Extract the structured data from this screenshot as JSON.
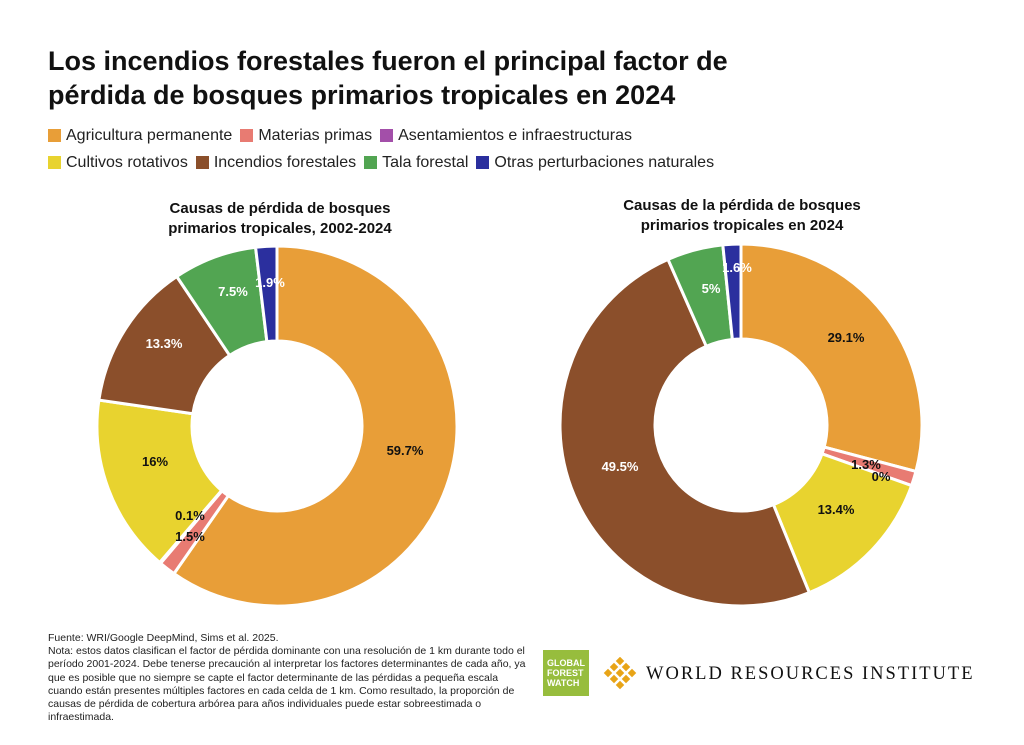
{
  "title": "Los incendios forestales fueron el principal factor de pérdida de bosques primarios tropicales en 2024",
  "legend": {
    "rows": [
      [
        {
          "label": "Agricultura permanente",
          "color": "#e89e38"
        },
        {
          "label": "Materias primas",
          "color": "#e87b72"
        },
        {
          "label": "Asentamientos e infraestructuras",
          "color": "#a34fa9"
        }
      ],
      [
        {
          "label": "Cultivos rotativos",
          "color": "#e8d32f"
        },
        {
          "label": "Incendios forestales",
          "color": "#8b4f2b"
        },
        {
          "label": "Tala forestal",
          "color": "#52a552"
        },
        {
          "label": "Otras perturbaciones naturales",
          "color": "#2b2f9e"
        }
      ]
    ]
  },
  "chart_data": [
    {
      "type": "pie",
      "title": "Causas de pérdida de bosques primarios tropicales, 2002-2024",
      "title_lines": [
        "Causas de pérdida de bosques",
        "primarios tropicales, 2002-2024"
      ],
      "donut": true,
      "slices": [
        {
          "name": "Agricultura permanente",
          "value": 59.7,
          "label": "59.7%",
          "color": "#e89e38"
        },
        {
          "name": "Materias primas",
          "value": 1.5,
          "label": "1.5%",
          "color": "#e87b72"
        },
        {
          "name": "Asentamientos e infraestructuras",
          "value": 0.1,
          "label": "0.1%",
          "color": "#a34fa9"
        },
        {
          "name": "Cultivos rotativos",
          "value": 16.0,
          "label": "16%",
          "color": "#e8d32f"
        },
        {
          "name": "Incendios forestales",
          "value": 13.3,
          "label": "13.3%",
          "color": "#8b4f2b"
        },
        {
          "name": "Tala forestal",
          "value": 7.5,
          "label": "7.5%",
          "color": "#52a552"
        },
        {
          "name": "Otras perturbaciones naturales",
          "value": 1.9,
          "label": "1.9%",
          "color": "#2b2f9e"
        }
      ]
    },
    {
      "type": "pie",
      "title": "Causas de la pérdida de bosques primarios tropicales en 2024",
      "title_lines": [
        "Causas de la pérdida de bosques",
        "primarios tropicales en 2024"
      ],
      "donut": true,
      "slices": [
        {
          "name": "Agricultura permanente",
          "value": 29.1,
          "label": "29.1%",
          "color": "#e89e38"
        },
        {
          "name": "Materias primas",
          "value": 1.3,
          "label": "1.3%",
          "color": "#e87b72"
        },
        {
          "name": "Asentamientos e infraestructuras",
          "value": 0.0,
          "label": "0%",
          "color": "#a34fa9"
        },
        {
          "name": "Cultivos rotativos",
          "value": 13.4,
          "label": "13.4%",
          "color": "#e8d32f"
        },
        {
          "name": "Incendios forestales",
          "value": 49.5,
          "label": "49.5%",
          "color": "#8b4f2b"
        },
        {
          "name": "Tala forestal",
          "value": 5.0,
          "label": "5%",
          "color": "#52a552"
        },
        {
          "name": "Otras perturbaciones naturales",
          "value": 1.6,
          "label": "1.6%",
          "color": "#2b2f9e"
        }
      ]
    }
  ],
  "footer": {
    "source": "Fuente: WRI/Google DeepMind, Sims et al. 2025.",
    "note": "Nota: estos datos clasifican el factor de pérdida dominante con una resolución de 1 km durante todo el período 2001-2024. Debe tenerse precaución al interpretar los factores determinantes de cada año, ya que es posible que no siempre se capte el factor determinante de las pérdidas a pequeña escala cuando están presentes múltiples factores en cada celda de 1 km. Como resultado, la proporción de causas de pérdida de cobertura arbórea para años individuales puede estar sobreestimada o infraestimada."
  },
  "logos": {
    "gfw": [
      "GLOBAL",
      "FOREST",
      "WATCH"
    ],
    "wri": "WORLD RESOURCES INSTITUTE"
  }
}
